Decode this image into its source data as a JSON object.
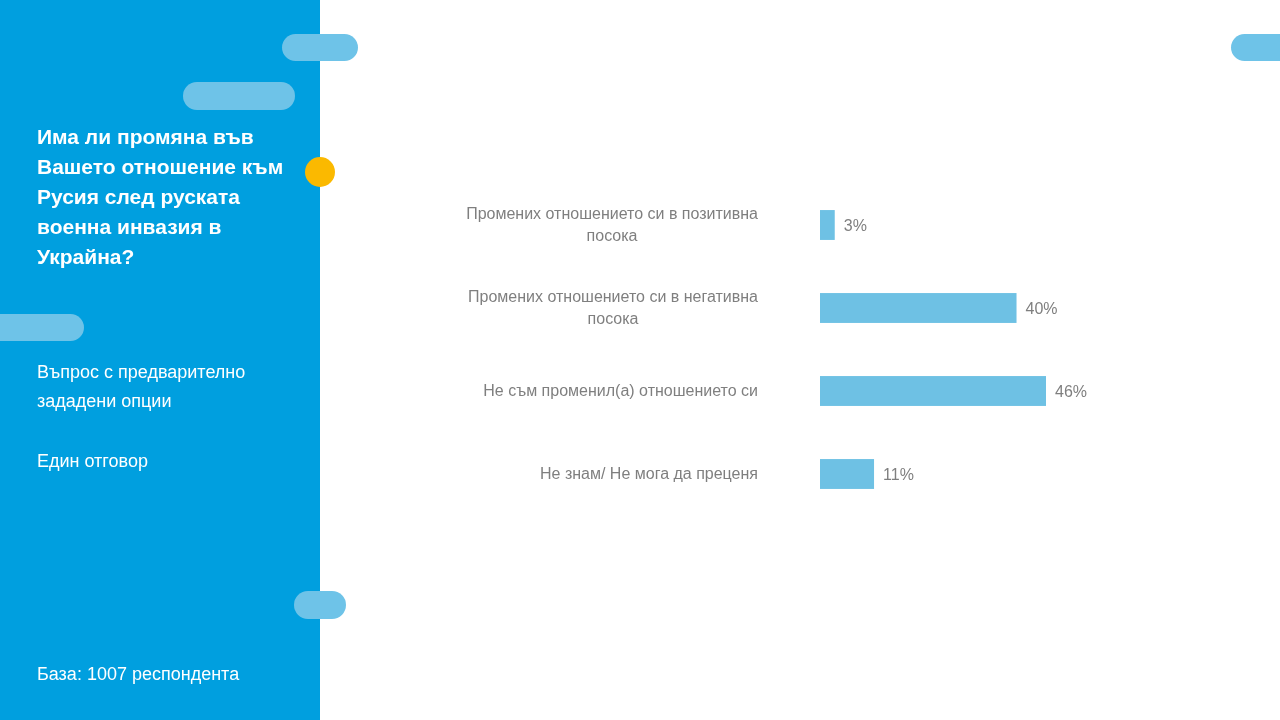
{
  "chart_data": {
    "type": "bar",
    "orientation": "horizontal",
    "title": "Има ли промяна във Вашето отношение към Русия след руската военна инвазия в Украйна?",
    "annotations": [
      "Въпрос с предварително зададени опции",
      "Един отговор",
      "База: 1007 респондента"
    ],
    "categories": [
      "Промених отношението си в позитивна посока",
      "Промених отношението си в негативна посока",
      "Не съм променил(а) отношението си",
      "Не знам/ Не мога да преценя"
    ],
    "values": [
      3,
      40,
      46,
      11
    ],
    "color": "#6ec1e4",
    "value_labels": [
      "3%",
      "40%",
      "46%",
      "11%"
    ]
  }
}
